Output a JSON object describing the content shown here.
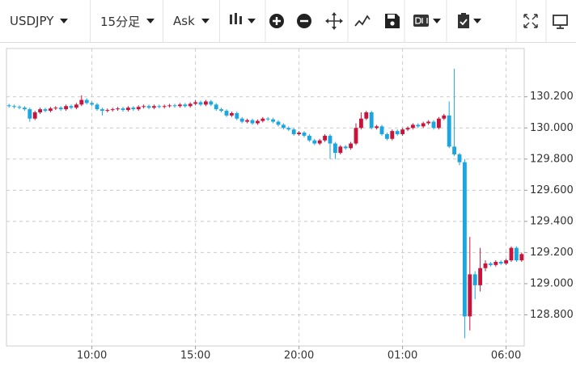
{
  "toolbar": {
    "symbol": "USDJPY",
    "interval": "15分足",
    "price_type": "Ask"
  },
  "chart_data": {
    "type": "candlestick",
    "grid": true,
    "up_color": "#c8143c",
    "down_color": "#1ba6e0",
    "ylim": [
      128.6,
      130.51
    ],
    "yticks": [
      {
        "value": 128.8,
        "label": "128.800"
      },
      {
        "value": 129.0,
        "label": "129.000"
      },
      {
        "value": 129.2,
        "label": "129.200"
      },
      {
        "value": 129.4,
        "label": "129.400"
      },
      {
        "value": 129.6,
        "label": "129.600"
      },
      {
        "value": 129.8,
        "label": "129.800"
      },
      {
        "value": 130.0,
        "label": "130.000"
      },
      {
        "value": 130.2,
        "label": "130.200"
      }
    ],
    "categories": [
      null,
      null,
      null,
      null,
      null,
      null,
      null,
      null,
      null,
      null,
      null,
      null,
      null,
      null,
      null,
      null,
      "10:00",
      null,
      null,
      null,
      null,
      null,
      null,
      null,
      null,
      null,
      null,
      null,
      null,
      null,
      null,
      null,
      null,
      null,
      null,
      null,
      "15:00",
      null,
      null,
      null,
      null,
      null,
      null,
      null,
      null,
      null,
      null,
      null,
      null,
      null,
      null,
      null,
      null,
      null,
      null,
      null,
      "20:00",
      null,
      null,
      null,
      null,
      null,
      null,
      null,
      null,
      null,
      null,
      null,
      null,
      null,
      null,
      null,
      null,
      null,
      null,
      null,
      "01:00",
      null,
      null,
      null,
      null,
      null,
      null,
      null,
      null,
      null,
      null,
      null,
      null,
      null,
      null,
      null,
      null,
      null,
      null,
      null,
      "06:00",
      null,
      null,
      null
    ],
    "open": [
      130.145,
      130.14,
      130.135,
      130.13,
      130.12,
      130.06,
      130.1,
      130.12,
      130.11,
      130.125,
      130.13,
      130.12,
      130.14,
      130.13,
      130.15,
      130.18,
      130.16,
      130.15,
      130.12,
      130.11,
      130.115,
      130.12,
      130.125,
      130.115,
      130.13,
      130.12,
      130.135,
      130.14,
      130.13,
      130.14,
      130.135,
      130.14,
      130.145,
      130.14,
      130.15,
      130.14,
      130.155,
      130.165,
      130.15,
      130.17,
      130.15,
      130.12,
      130.11,
      130.08,
      130.095,
      130.06,
      130.04,
      130.05,
      130.03,
      130.045,
      130.06,
      130.055,
      130.04,
      130.02,
      130.0,
      129.99,
      129.96,
      129.97,
      129.95,
      129.92,
      129.9,
      129.92,
      129.95,
      129.9,
      129.84,
      129.88,
      129.87,
      129.9,
      130.0,
      130.06,
      130.1,
      130.0,
      130.01,
      129.96,
      129.93,
      129.98,
      129.96,
      129.99,
      130.0,
      130.02,
      130.01,
      130.03,
      130.04,
      130.0,
      130.06,
      130.08,
      129.88,
      129.83,
      129.78,
      128.79,
      129.06,
      128.99,
      129.1,
      129.13,
      129.12,
      129.14,
      129.13,
      129.15,
      129.23,
      129.15
    ],
    "high": [
      130.155,
      130.15,
      130.145,
      130.14,
      130.13,
      130.11,
      130.13,
      130.13,
      130.135,
      130.14,
      130.14,
      130.15,
      130.15,
      130.16,
      130.21,
      130.19,
      130.17,
      130.16,
      130.13,
      130.125,
      130.13,
      130.135,
      130.135,
      130.14,
      130.14,
      130.145,
      130.15,
      130.15,
      130.15,
      130.15,
      130.15,
      130.155,
      130.155,
      130.16,
      130.16,
      130.165,
      130.18,
      130.175,
      130.18,
      130.18,
      130.16,
      130.13,
      130.12,
      130.105,
      130.105,
      130.07,
      130.06,
      130.06,
      130.055,
      130.07,
      130.07,
      130.065,
      130.05,
      130.03,
      130.01,
      130.0,
      129.98,
      129.98,
      129.96,
      129.93,
      129.93,
      129.96,
      129.96,
      129.91,
      129.89,
      129.89,
      129.91,
      130.03,
      130.1,
      130.11,
      130.11,
      130.02,
      130.02,
      129.97,
      129.99,
      129.99,
      130.0,
      130.01,
      130.03,
      130.03,
      130.04,
      130.05,
      130.05,
      130.07,
      130.09,
      130.17,
      130.38,
      129.84,
      129.8,
      129.3,
      129.08,
      129.23,
      129.15,
      129.14,
      129.15,
      129.15,
      129.16,
      129.24,
      129.24,
      129.2
    ],
    "low": [
      130.13,
      130.125,
      130.12,
      130.11,
      130.04,
      130.05,
      130.09,
      130.1,
      130.1,
      130.115,
      130.11,
      130.11,
      130.12,
      130.12,
      130.14,
      130.15,
      130.14,
      130.11,
      130.08,
      130.1,
      130.105,
      130.11,
      130.105,
      130.105,
      130.11,
      130.11,
      130.125,
      130.12,
      130.12,
      130.125,
      130.125,
      130.13,
      130.13,
      130.13,
      130.13,
      130.13,
      130.145,
      130.14,
      130.14,
      130.14,
      130.11,
      130.1,
      130.07,
      130.07,
      130.05,
      130.03,
      130.03,
      130.02,
      130.02,
      130.035,
      130.045,
      130.03,
      130.01,
      129.99,
      129.98,
      129.95,
      129.95,
      129.94,
      129.91,
      129.89,
      129.89,
      129.91,
      129.8,
      129.8,
      129.83,
      129.86,
      129.86,
      129.89,
      129.99,
      130.05,
      129.99,
      129.99,
      129.95,
      129.92,
      129.92,
      129.95,
      129.95,
      129.98,
      129.99,
      130.0,
      130.0,
      130.02,
      129.99,
      129.99,
      130.05,
      129.87,
      129.82,
      129.76,
      128.65,
      128.7,
      128.9,
      128.95,
      129.08,
      129.11,
      129.11,
      129.12,
      129.12,
      129.14,
      129.14,
      129.14
    ],
    "close": [
      130.14,
      130.135,
      130.13,
      130.12,
      130.06,
      130.1,
      130.12,
      130.11,
      130.125,
      130.13,
      130.12,
      130.14,
      130.13,
      130.15,
      130.18,
      130.16,
      130.15,
      130.12,
      130.11,
      130.115,
      130.12,
      130.125,
      130.115,
      130.13,
      130.12,
      130.135,
      130.14,
      130.13,
      130.14,
      130.135,
      130.14,
      130.145,
      130.14,
      130.15,
      130.14,
      130.155,
      130.165,
      130.15,
      130.17,
      130.15,
      130.12,
      130.11,
      130.08,
      130.095,
      130.06,
      130.04,
      130.05,
      130.03,
      130.045,
      130.06,
      130.055,
      130.04,
      130.02,
      130.0,
      129.99,
      129.96,
      129.97,
      129.95,
      129.92,
      129.9,
      129.92,
      129.95,
      129.9,
      129.84,
      129.88,
      129.87,
      129.9,
      130.0,
      130.06,
      130.1,
      130.0,
      130.01,
      129.96,
      129.93,
      129.98,
      129.96,
      129.99,
      130.0,
      130.02,
      130.01,
      130.03,
      130.04,
      130.0,
      130.06,
      130.08,
      129.88,
      129.83,
      129.78,
      128.79,
      129.06,
      128.99,
      129.1,
      129.13,
      129.12,
      129.14,
      129.13,
      129.15,
      129.23,
      129.15,
      129.19
    ]
  }
}
